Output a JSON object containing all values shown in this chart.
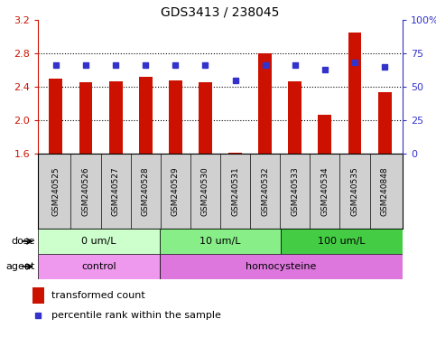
{
  "title": "GDS3413 / 238045",
  "samples": [
    "GSM240525",
    "GSM240526",
    "GSM240527",
    "GSM240528",
    "GSM240529",
    "GSM240530",
    "GSM240531",
    "GSM240532",
    "GSM240533",
    "GSM240534",
    "GSM240535",
    "GSM240848"
  ],
  "bar_values": [
    2.5,
    2.45,
    2.47,
    2.52,
    2.48,
    2.45,
    1.61,
    2.8,
    2.47,
    2.07,
    3.05,
    2.34
  ],
  "dot_values": [
    66,
    66,
    66,
    66,
    66,
    66,
    55,
    66,
    66,
    63,
    68,
    65
  ],
  "bar_color": "#cc1100",
  "dot_color": "#3333cc",
  "ylim_left": [
    1.6,
    3.2
  ],
  "ylim_right": [
    0,
    100
  ],
  "yticks_left": [
    1.6,
    2.0,
    2.4,
    2.8,
    3.2
  ],
  "yticks_right": [
    0,
    25,
    50,
    75,
    100
  ],
  "yticklabels_right": [
    "0",
    "25",
    "50",
    "75",
    "100%"
  ],
  "dose_groups": [
    {
      "label": "0 um/L",
      "start": 0,
      "end": 4,
      "color": "#ccffcc"
    },
    {
      "label": "10 um/L",
      "start": 4,
      "end": 8,
      "color": "#88ee88"
    },
    {
      "label": "100 um/L",
      "start": 8,
      "end": 12,
      "color": "#44cc44"
    }
  ],
  "agent_groups": [
    {
      "label": "control",
      "start": 0,
      "end": 4,
      "color": "#ee99ee"
    },
    {
      "label": "homocysteine",
      "start": 4,
      "end": 12,
      "color": "#dd77dd"
    }
  ],
  "dose_label": "dose",
  "agent_label": "agent",
  "legend_bar_label": "transformed count",
  "legend_dot_label": "percentile rank within the sample",
  "bar_width": 0.45,
  "background_color": "#ffffff",
  "plot_bg_color": "#ffffff",
  "left_tick_color": "#cc1100",
  "right_tick_color": "#3333cc",
  "sample_box_color": "#d0d0d0",
  "gridline_vals": [
    2.0,
    2.4,
    2.8
  ]
}
